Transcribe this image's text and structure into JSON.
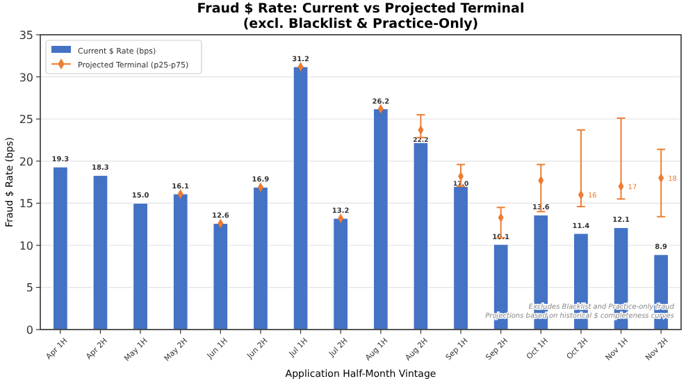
{
  "chart_data": {
    "type": "bar",
    "title": "Fraud $ Rate: Current vs Projected Terminal\n(excl. Blacklist & Practice-Only)",
    "xlabel": "Application Half-Month Vintage",
    "ylabel": "Fraud $ Rate (bps)",
    "categories": [
      "Apr 1H",
      "Apr 2H",
      "May 1H",
      "May 2H",
      "Jun 1H",
      "Jun 2H",
      "Jul 1H",
      "Jul 2H",
      "Aug 1H",
      "Aug 2H",
      "Sep 1H",
      "Sep 2H",
      "Oct 1H",
      "Oct 2H",
      "Nov 1H",
      "Nov 2H"
    ],
    "series": [
      {
        "name": "Current $ Rate (bps)",
        "color": "#4472c4",
        "values": [
          19.3,
          18.3,
          15.0,
          16.1,
          12.6,
          16.9,
          31.2,
          13.2,
          26.2,
          22.2,
          17.0,
          10.1,
          13.6,
          11.4,
          12.1,
          8.9
        ],
        "value_labels": [
          "19.3",
          "18.3",
          "15.0",
          "16.1",
          "12.6",
          "16.9",
          "31.2",
          "13.2",
          "26.2",
          "22.2",
          "17.0",
          "10.1",
          "13.6",
          "11.4",
          "12.1",
          "8.9"
        ]
      },
      {
        "name": "Projected Terminal (p25-p75)",
        "type": "scatter",
        "color": "#ed7d31",
        "marker": "diamond",
        "values": [
          null,
          null,
          null,
          16.1,
          12.6,
          16.9,
          31.2,
          13.2,
          26.2,
          23.7,
          18.2,
          13.3,
          17.7,
          16,
          17,
          18
        ],
        "errors": [
          null,
          null,
          null,
          null,
          null,
          null,
          null,
          null,
          null,
          [
            22.8,
            25.5
          ],
          [
            17.0,
            19.6
          ],
          [
            10.9,
            14.5
          ],
          [
            14.0,
            19.6
          ],
          [
            14.6,
            23.7
          ],
          [
            15.5,
            25.1
          ],
          [
            13.4,
            21.4
          ]
        ],
        "value_labels": [
          null,
          null,
          null,
          null,
          null,
          null,
          null,
          null,
          null,
          null,
          null,
          null,
          null,
          "16",
          "17",
          "18"
        ]
      }
    ],
    "ylim": [
      0,
      35
    ],
    "yticks": [
      0,
      5,
      10,
      15,
      20,
      25,
      30,
      35
    ],
    "grid": "y",
    "legend": "top left",
    "annotations": [
      "Excludes Blacklist and Practice-only fraud\nProjections based on historical $ completeness curves"
    ]
  }
}
